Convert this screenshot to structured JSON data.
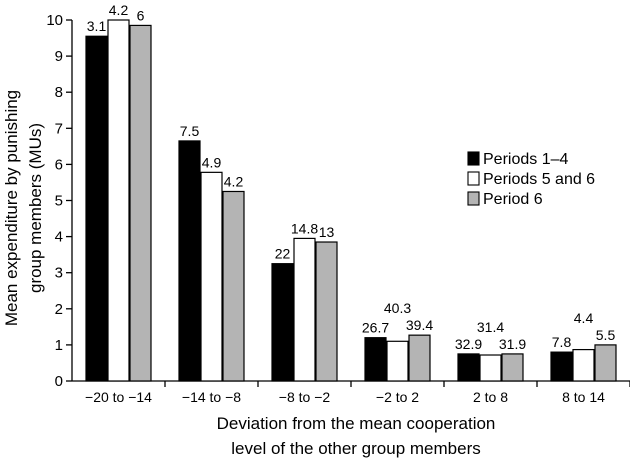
{
  "chart_data": {
    "type": "bar",
    "xlabel_lines": [
      "Deviation from the mean cooperation",
      "level of the other group members"
    ],
    "ylabel_lines": [
      "Mean expenditure by punishing",
      "group members (MUs)"
    ],
    "ylim": [
      0,
      10
    ],
    "yticks": [
      0,
      1,
      2,
      3,
      4,
      5,
      6,
      7,
      8,
      9,
      10
    ],
    "categories": [
      "−20 to −14",
      "−14 to −8",
      "−8 to −2",
      "−2 to 2",
      "2 to 8",
      "8 to 14"
    ],
    "grid": false,
    "legend_position": "right",
    "series": [
      {
        "name": "Periods 1–4",
        "color": "#000000",
        "values": [
          9.55,
          6.65,
          3.25,
          1.2,
          0.75,
          0.8
        ],
        "labels": [
          "3.1",
          "7.5",
          "22",
          "26.7",
          "32.9",
          "7.8"
        ]
      },
      {
        "name": "Periods 5 and 6",
        "color": "#ffffff",
        "values": [
          10.0,
          5.78,
          3.95,
          1.1,
          0.72,
          0.87
        ],
        "labels": [
          "4.2",
          "4.9",
          "14.8",
          "40.3",
          "31.4",
          "4.4"
        ]
      },
      {
        "name": "Period 6",
        "color": "#b4b4b4",
        "values": [
          9.85,
          5.25,
          3.85,
          1.27,
          0.75,
          1.0
        ],
        "labels": [
          "6",
          "4.2",
          "13",
          "39.4",
          "31.9",
          "5.5"
        ]
      }
    ]
  }
}
